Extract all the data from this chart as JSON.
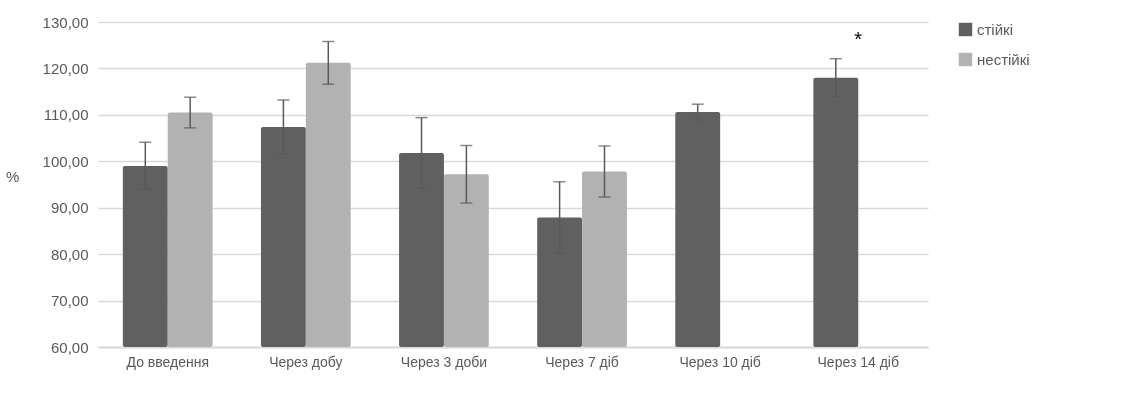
{
  "chart_data": {
    "type": "bar",
    "categories": [
      "До введення",
      "Через добу",
      "Через 3 доби",
      "Через 7 діб",
      "Через 10 діб",
      "Через 14 діб"
    ],
    "series": [
      {
        "name": "стійкі",
        "color": "#606060",
        "values": [
          99.0,
          107.4,
          101.8,
          87.9,
          110.6,
          118.0
        ],
        "errors": [
          5.1,
          5.8,
          7.6,
          7.7,
          1.7,
          4.1
        ]
      },
      {
        "name": "нестійкі",
        "color": "#b2b2b2",
        "values": [
          110.5,
          121.2,
          97.2,
          97.8,
          null,
          null
        ],
        "errors": [
          3.3,
          4.6,
          6.2,
          5.5,
          null,
          null
        ]
      }
    ],
    "ylabel": "%",
    "ylim": [
      60,
      130
    ],
    "yticks": [
      {
        "value": 60,
        "label": "60,00"
      },
      {
        "value": 70,
        "label": "70,00"
      },
      {
        "value": 80,
        "label": "80,00"
      },
      {
        "value": 90,
        "label": "90,00"
      },
      {
        "value": 100,
        "label": "100,00"
      },
      {
        "value": 110,
        "label": "110,00"
      },
      {
        "value": 120,
        "label": "120,00"
      },
      {
        "value": 130,
        "label": "130,00"
      }
    ],
    "grid": "y",
    "legend": "right",
    "annotations": [
      "*"
    ]
  }
}
